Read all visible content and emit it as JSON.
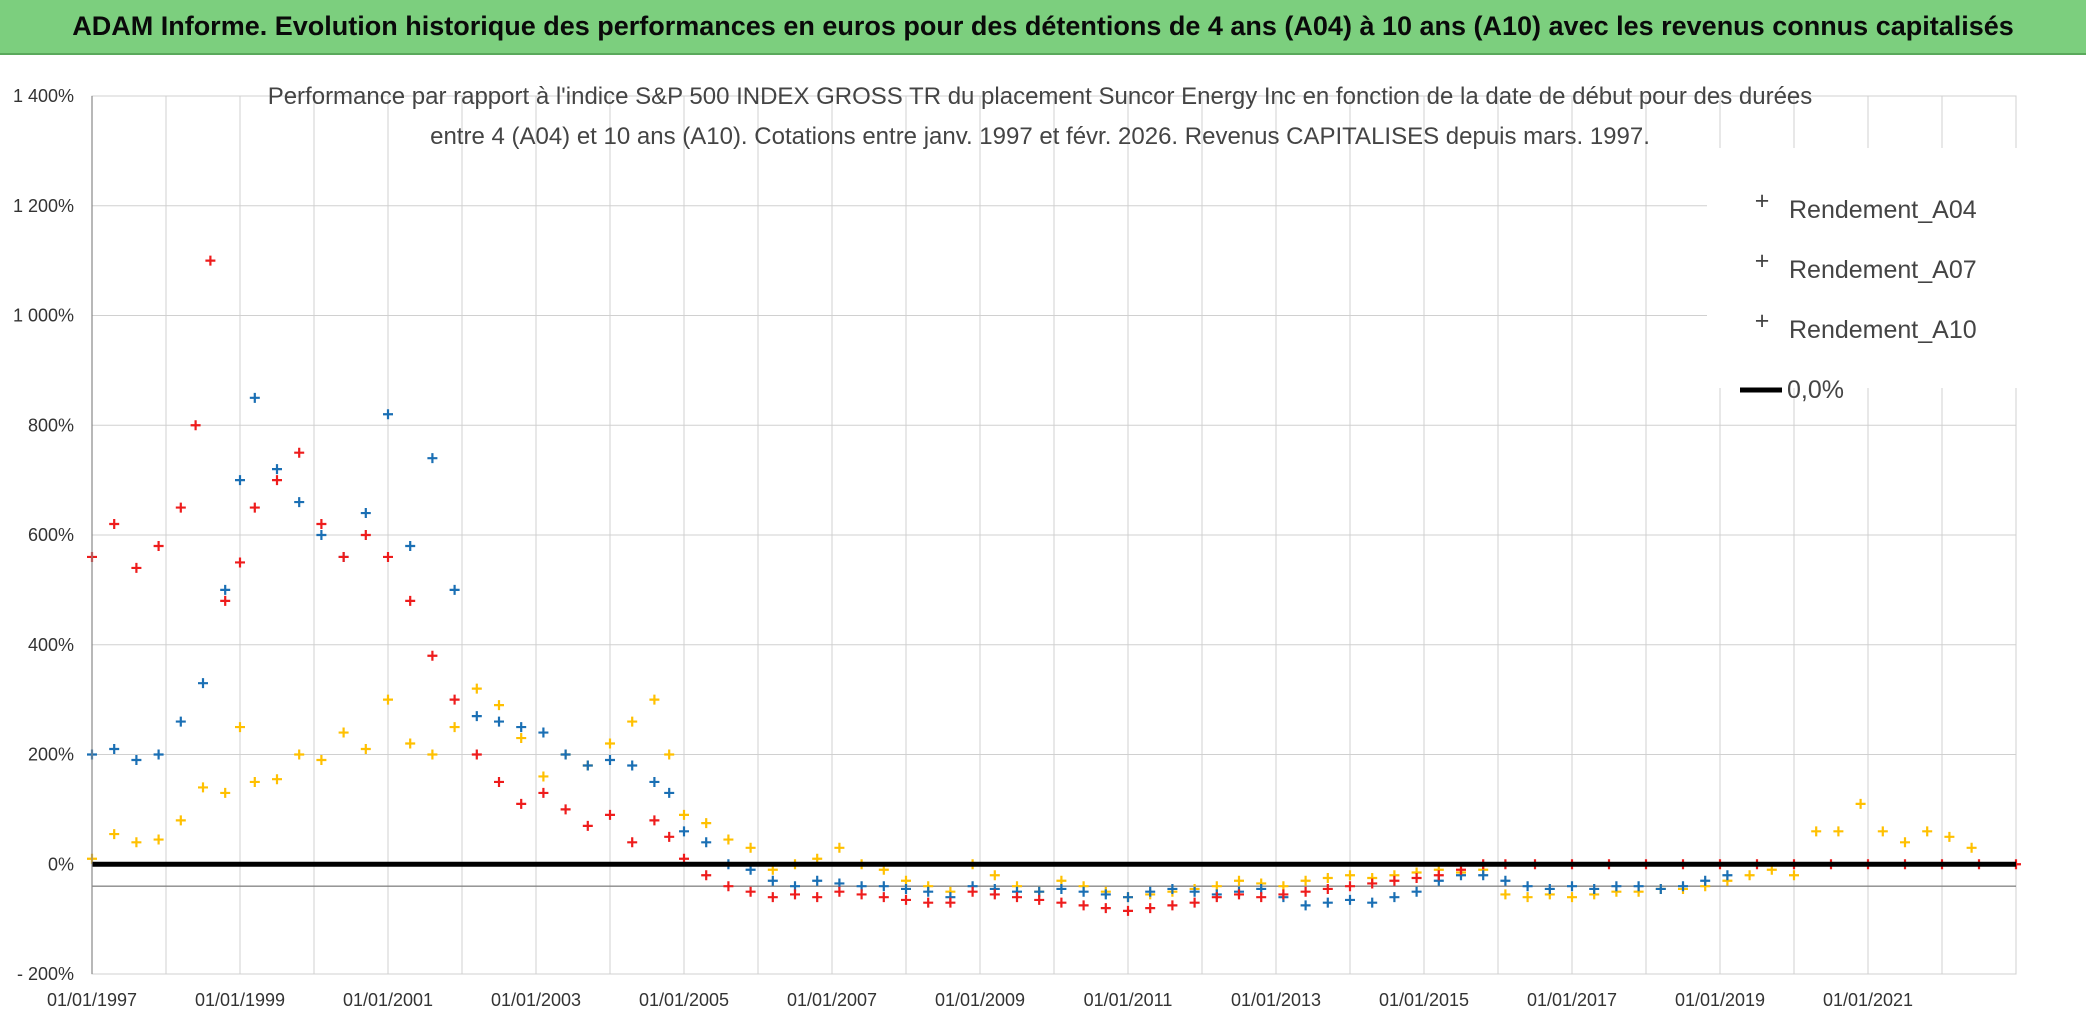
{
  "banner": {
    "title": "ADAM Informe. Evolution historique des performances en euros pour des détentions de 4 ans (A04) à 10 ans (A10) avec les revenus connus capitalisés"
  },
  "chart_data": {
    "type": "scatter",
    "title_line1": "Performance par rapport à l'indice S&P 500 INDEX GROSS TR  du placement Suncor Energy Inc en fonction de la date de début pour des durées",
    "title_line2": "entre 4 (A04) et 10 ans (A10). Cotations entre janv. 1997 et févr. 2026. Revenus CAPITALISES depuis mars. 1997.",
    "xlabel": "",
    "ylabel": "",
    "xlim": [
      1997.0,
      2023.0
    ],
    "ylim": [
      -200,
      1400
    ],
    "y_ticks": [
      -200,
      0,
      200,
      400,
      600,
      800,
      1000,
      1200,
      1400
    ],
    "y_tick_labels": [
      "- 200%",
      "0%",
      "200%",
      "400%",
      "600%",
      "800%",
      "1 000%",
      "1 200%",
      "1 400%"
    ],
    "x_ticks": [
      1997,
      1999,
      2001,
      2003,
      2005,
      2007,
      2009,
      2011,
      2013,
      2015,
      2017,
      2019,
      2021
    ],
    "x_tick_labels": [
      "01/01/1997",
      "01/01/1999",
      "01/01/2001",
      "01/01/2003",
      "01/01/2005",
      "01/01/2007",
      "01/01/2009",
      "01/01/2011",
      "01/01/2013",
      "01/01/2015",
      "01/01/2017",
      "01/01/2019",
      "01/01/2021"
    ],
    "x_minor_gridlines": [
      1998,
      2000,
      2002,
      2004,
      2006,
      2008,
      2010,
      2012,
      2014,
      2016,
      2018,
      2020,
      2022
    ],
    "reference_line_minus": -40,
    "legend_position": "top-right",
    "series": [
      {
        "name": "Rendement_A04",
        "color": "#ffc000",
        "marker": "plus",
        "x": [
          1997.0,
          1997.3,
          1997.6,
          1997.9,
          1998.2,
          1998.5,
          1998.8,
          1999.0,
          1999.2,
          1999.5,
          1999.8,
          2000.1,
          2000.4,
          2000.7,
          2001.0,
          2001.3,
          2001.6,
          2001.9,
          2002.2,
          2002.5,
          2002.8,
          2003.1,
          2003.4,
          2003.7,
          2004.0,
          2004.3,
          2004.6,
          2004.8,
          2005.0,
          2005.3,
          2005.6,
          2005.9,
          2006.2,
          2006.5,
          2006.8,
          2007.1,
          2007.4,
          2007.7,
          2008.0,
          2008.3,
          2008.6,
          2008.9,
          2009.2,
          2009.5,
          2009.8,
          2010.1,
          2010.4,
          2010.7,
          2011.0,
          2011.3,
          2011.6,
          2011.9,
          2012.2,
          2012.5,
          2012.8,
          2013.1,
          2013.4,
          2013.7,
          2014.0,
          2014.3,
          2014.6,
          2014.9,
          2015.2,
          2015.5,
          2015.8,
          2016.1,
          2016.4,
          2016.7,
          2017.0,
          2017.3,
          2017.6,
          2017.9,
          2018.2,
          2018.5,
          2018.8,
          2019.1,
          2019.4,
          2019.7,
          2020.0,
          2020.3,
          2020.6,
          2020.9,
          2021.2,
          2021.5,
          2021.8,
          2022.1,
          2022.4
        ],
        "y": [
          10,
          55,
          40,
          45,
          80,
          140,
          130,
          250,
          150,
          155,
          200,
          190,
          240,
          210,
          300,
          220,
          200,
          250,
          320,
          290,
          230,
          160,
          200,
          180,
          220,
          260,
          300,
          200,
          90,
          75,
          45,
          30,
          -10,
          0,
          10,
          30,
          0,
          -10,
          -30,
          -40,
          -50,
          0,
          -20,
          -40,
          -50,
          -30,
          -40,
          -50,
          -60,
          -55,
          -50,
          -45,
          -40,
          -30,
          -35,
          -40,
          -30,
          -25,
          -20,
          -25,
          -20,
          -15,
          -10,
          -15,
          -10,
          -55,
          -60,
          -55,
          -60,
          -55,
          -50,
          -50,
          -45,
          -45,
          -40,
          -30,
          -20,
          -10,
          -20,
          60,
          60,
          110,
          60,
          40,
          60,
          50,
          30
        ]
      },
      {
        "name": "Rendement_A07",
        "color": "#1a6fb4",
        "marker": "plus",
        "x": [
          1997.0,
          1997.3,
          1997.6,
          1997.9,
          1998.2,
          1998.5,
          1998.8,
          1999.0,
          1999.2,
          1999.5,
          1999.8,
          2000.1,
          2000.4,
          2000.7,
          2001.0,
          2001.3,
          2001.6,
          2001.9,
          2002.2,
          2002.5,
          2002.8,
          2003.1,
          2003.4,
          2003.7,
          2004.0,
          2004.3,
          2004.6,
          2004.8,
          2005.0,
          2005.3,
          2005.6,
          2005.9,
          2006.2,
          2006.5,
          2006.8,
          2007.1,
          2007.4,
          2007.7,
          2008.0,
          2008.3,
          2008.6,
          2008.9,
          2009.2,
          2009.5,
          2009.8,
          2010.1,
          2010.4,
          2010.7,
          2011.0,
          2011.3,
          2011.6,
          2011.9,
          2012.2,
          2012.5,
          2012.8,
          2013.1,
          2013.4,
          2013.7,
          2014.0,
          2014.3,
          2014.6,
          2014.9,
          2015.2,
          2015.5,
          2015.8,
          2016.1,
          2016.4,
          2016.7,
          2017.0,
          2017.3,
          2017.6,
          2017.9,
          2018.2,
          2018.5,
          2018.8,
          2019.1
        ],
        "y": [
          200,
          210,
          190,
          200,
          260,
          330,
          500,
          700,
          850,
          720,
          660,
          600,
          560,
          640,
          820,
          580,
          740,
          500,
          270,
          260,
          250,
          240,
          200,
          180,
          190,
          180,
          150,
          130,
          60,
          40,
          0,
          -10,
          -30,
          -40,
          -30,
          -35,
          -40,
          -40,
          -45,
          -50,
          -60,
          -40,
          -45,
          -50,
          -50,
          -45,
          -50,
          -55,
          -60,
          -50,
          -45,
          -50,
          -55,
          -50,
          -45,
          -60,
          -75,
          -70,
          -65,
          -70,
          -60,
          -50,
          -30,
          -20,
          -20,
          -30,
          -40,
          -45,
          -40,
          -45,
          -40,
          -40,
          -45,
          -40,
          -30,
          -20
        ]
      },
      {
        "name": "Rendement_A10",
        "color": "#ee1c1c",
        "marker": "plus",
        "x": [
          1997.0,
          1997.3,
          1997.6,
          1997.9,
          1998.2,
          1998.4,
          1998.6,
          1998.8,
          1999.0,
          1999.2,
          1999.5,
          1999.8,
          2000.1,
          2000.4,
          2000.7,
          2001.0,
          2001.3,
          2001.6,
          2001.9,
          2002.2,
          2002.5,
          2002.8,
          2003.1,
          2003.4,
          2003.7,
          2004.0,
          2004.3,
          2004.6,
          2004.8,
          2005.0,
          2005.3,
          2005.6,
          2005.9,
          2006.2,
          2006.5,
          2006.8,
          2007.1,
          2007.4,
          2007.7,
          2008.0,
          2008.3,
          2008.6,
          2008.9,
          2009.2,
          2009.5,
          2009.8,
          2010.1,
          2010.4,
          2010.7,
          2011.0,
          2011.3,
          2011.6,
          2011.9,
          2012.2,
          2012.5,
          2012.8,
          2013.1,
          2013.4,
          2013.7,
          2014.0,
          2014.3,
          2014.6,
          2014.9,
          2015.2,
          2015.5,
          2015.8,
          2016.1,
          2016.5,
          2017.0,
          2017.5,
          2018.0,
          2018.5,
          2019.0,
          2019.5,
          2020.0,
          2020.5,
          2021.0,
          2021.5,
          2022.0,
          2022.5,
          2023.0
        ],
        "y": [
          560,
          620,
          540,
          580,
          650,
          800,
          1100,
          480,
          550,
          650,
          700,
          750,
          620,
          560,
          600,
          560,
          480,
          380,
          300,
          200,
          150,
          110,
          130,
          100,
          70,
          90,
          40,
          80,
          50,
          10,
          -20,
          -40,
          -50,
          -60,
          -55,
          -60,
          -50,
          -55,
          -60,
          -65,
          -70,
          -70,
          -50,
          -55,
          -60,
          -65,
          -70,
          -75,
          -80,
          -85,
          -80,
          -75,
          -70,
          -60,
          -55,
          -60,
          -55,
          -50,
          -45,
          -40,
          -35,
          -30,
          -25,
          -20,
          -10,
          0,
          0,
          0,
          0,
          0,
          0,
          0,
          0,
          0,
          0,
          0,
          0,
          0,
          0,
          0,
          0
        ]
      }
    ],
    "zero_line": {
      "name": "0,0%",
      "color": "#000000",
      "value": 0
    }
  }
}
